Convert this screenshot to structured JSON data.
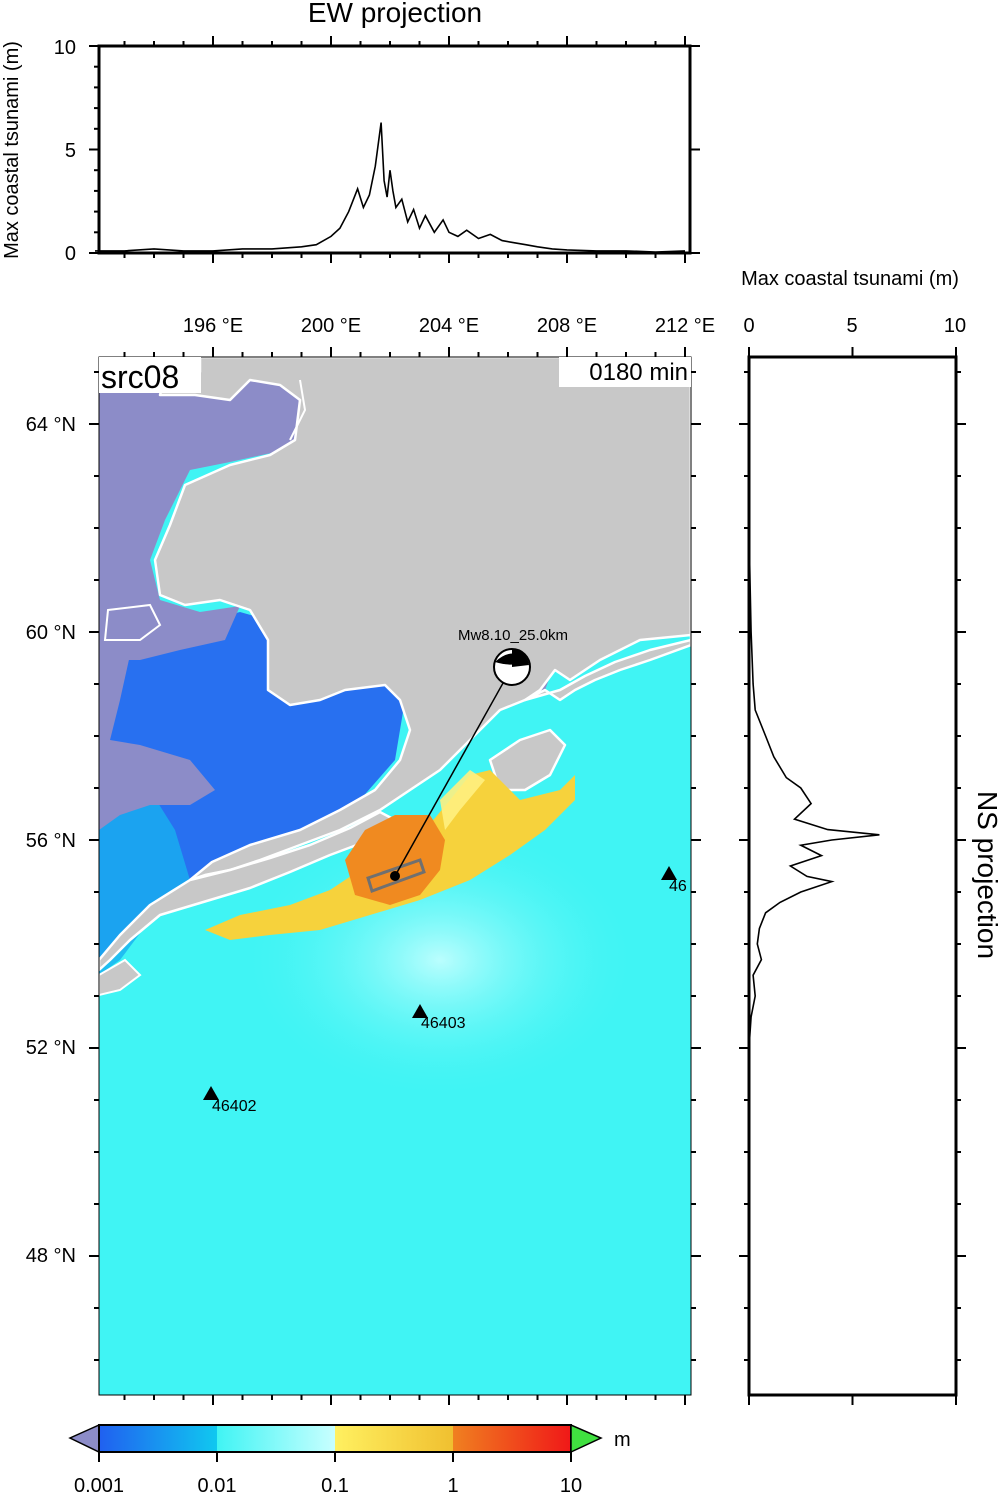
{
  "ew_panel": {
    "title": "EW projection",
    "ylabel": "Max coastal tsunami (m)",
    "ytick_labels": [
      "0",
      "5",
      "10"
    ]
  },
  "ns_panel": {
    "title": "NS projection",
    "xlabel": "Max coastal tsunami (m)",
    "xtick_labels": [
      "0",
      "5",
      "10"
    ]
  },
  "map": {
    "source_label": "src08",
    "time_label": "0180 min",
    "lon_labels": [
      "196 °E",
      "200 °E",
      "204 °E",
      "208 °E",
      "212 °E"
    ],
    "lat_labels": [
      "64 °N",
      "60 °N",
      "56 °N",
      "52 °N",
      "48 °N"
    ],
    "event_label": "Mw8.10_25.0km",
    "stations": [
      {
        "id": "46402",
        "lon": 196.0,
        "lat": 51.1
      },
      {
        "id": "46403",
        "lon": 203.0,
        "lat": 52.7
      },
      {
        "id": "46",
        "lon": 211.5,
        "lat": 55.3
      }
    ],
    "epicenter": {
      "lon": 202.2,
      "lat": 55.3
    },
    "colors": {
      "land": "#c8c8c8",
      "deep_low": "#8c8cc8",
      "ocean_background": "#40f4f4",
      "coast_outline": "#ffffff"
    }
  },
  "colorbar": {
    "unit": "m",
    "tick_labels": [
      "0.001",
      "0.01",
      "0.1",
      "1",
      "10"
    ],
    "colors": [
      "#8c8cc8",
      "#2060f0",
      "#10c8f0",
      "#40f4f4",
      "#f0d040",
      "#f08020",
      "#f01818",
      "#40e040"
    ]
  },
  "chart_data": [
    {
      "type": "line",
      "title": "EW projection",
      "ylabel": "Max coastal tsunami (m)",
      "ylim": [
        0,
        10
      ],
      "xlim": [
        192,
        212
      ],
      "series": [
        {
          "x": [
            192.0,
            193.0,
            194.0,
            195.0,
            196.0,
            197.0,
            198.0,
            199.0,
            199.5,
            200.0,
            200.3,
            200.6,
            200.9,
            201.1,
            201.3,
            201.5,
            201.7,
            201.8,
            201.9,
            202.0,
            202.1,
            202.2,
            202.4,
            202.6,
            202.8,
            203.0,
            203.2,
            203.5,
            203.8,
            204.0,
            204.3,
            204.6,
            205.0,
            205.4,
            205.8,
            206.2,
            206.6,
            207.0,
            207.5,
            208.0,
            209.0,
            210.0,
            211.0,
            212.0
          ],
          "y": [
            0.1,
            0.1,
            0.2,
            0.1,
            0.1,
            0.2,
            0.2,
            0.3,
            0.4,
            0.8,
            1.2,
            2.0,
            3.1,
            2.2,
            2.8,
            4.2,
            6.3,
            3.5,
            2.7,
            4.0,
            3.0,
            2.2,
            2.6,
            1.5,
            2.1,
            1.2,
            1.8,
            1.0,
            1.6,
            1.0,
            0.8,
            1.1,
            0.7,
            0.9,
            0.6,
            0.5,
            0.4,
            0.3,
            0.2,
            0.15,
            0.1,
            0.1,
            0.05,
            0.1
          ]
        }
      ]
    },
    {
      "type": "line",
      "title": "NS projection",
      "xlabel": "Max coastal tsunami (m)",
      "xlim": [
        0,
        10
      ],
      "series": [
        {
          "lat": [
            62.0,
            61.0,
            60.0,
            59.0,
            58.5,
            58.0,
            57.6,
            57.2,
            57.0,
            56.7,
            56.4,
            56.2,
            56.1,
            56.0,
            55.9,
            55.7,
            55.5,
            55.3,
            55.2,
            55.0,
            54.8,
            54.6,
            54.3,
            54.0,
            53.7,
            53.4,
            53.0,
            52.6,
            52.0
          ],
          "value": [
            0.0,
            0.05,
            0.1,
            0.2,
            0.3,
            0.8,
            1.2,
            1.8,
            2.5,
            3.0,
            2.2,
            3.8,
            6.3,
            4.0,
            2.5,
            3.5,
            2.0,
            2.8,
            4.0,
            2.5,
            1.5,
            0.8,
            0.5,
            0.4,
            0.6,
            0.2,
            0.3,
            0.1,
            0.0
          ]
        }
      ]
    }
  ]
}
